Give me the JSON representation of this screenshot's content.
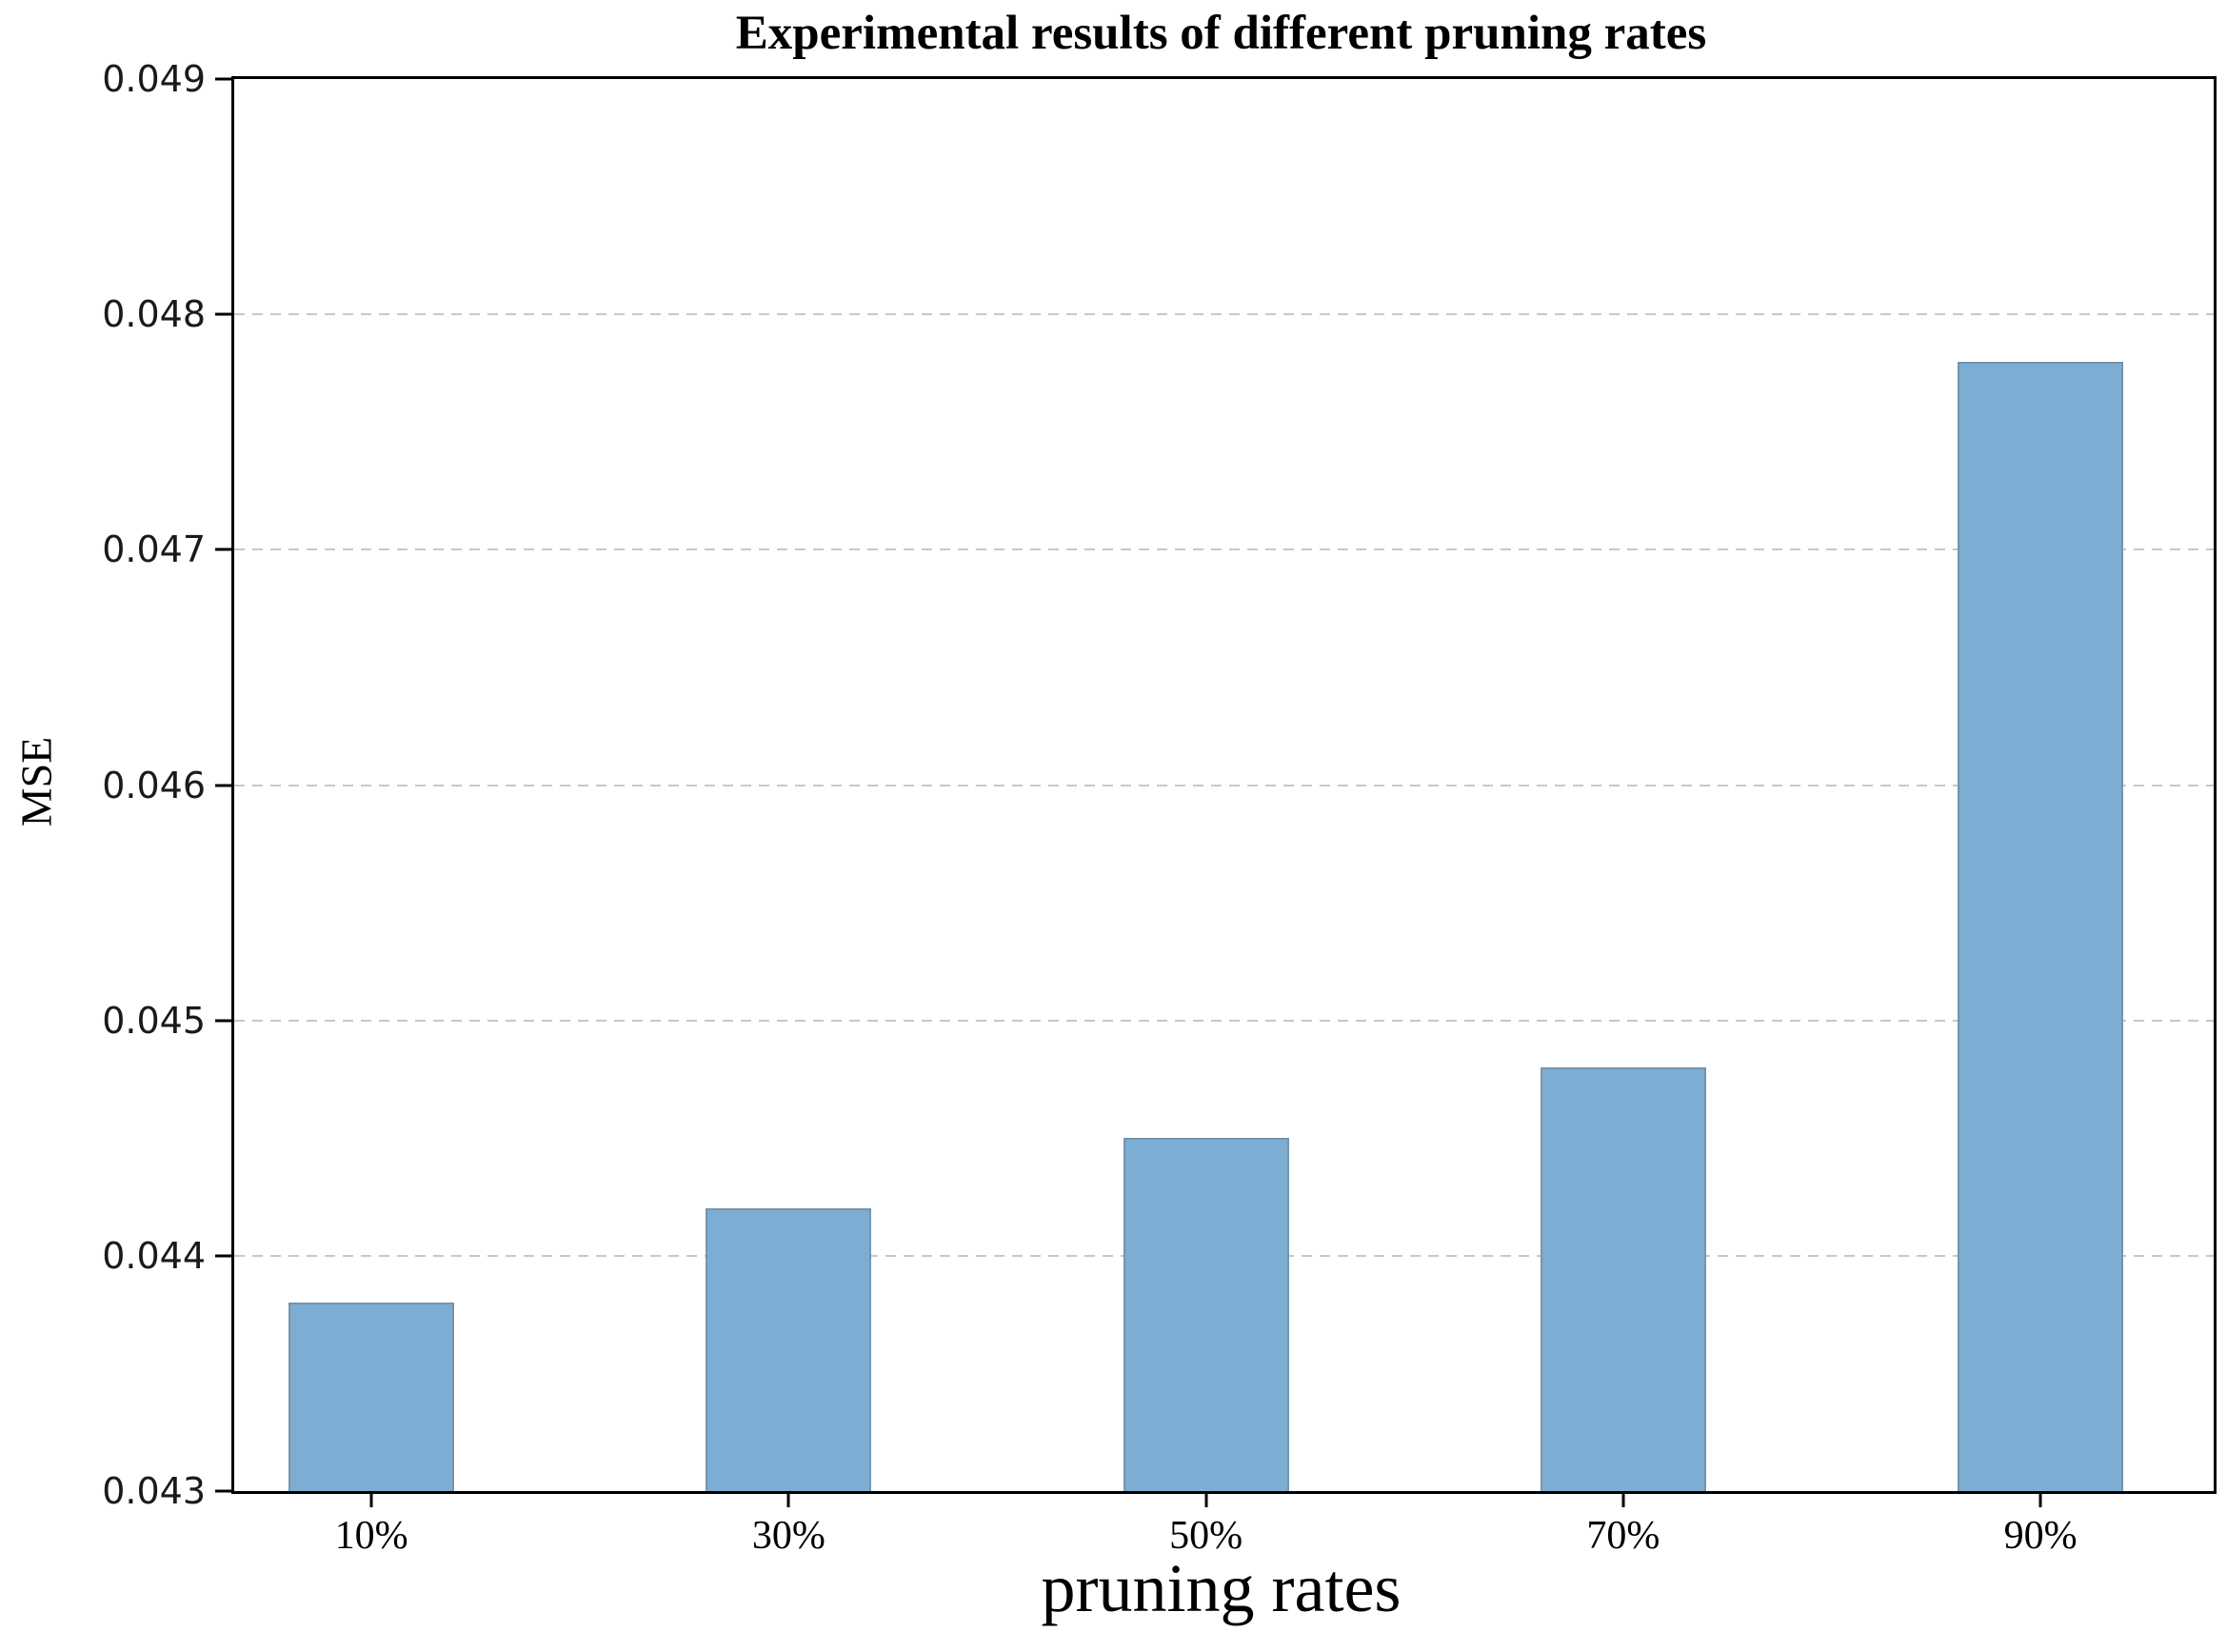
{
  "chart_data": {
    "type": "bar",
    "title": "Experimental results of different pruning rates",
    "xlabel": "pruning rates",
    "ylabel": "MSE",
    "categories": [
      "10%",
      "30%",
      "50%",
      "70%",
      "90%"
    ],
    "values": [
      0.0438,
      0.0442,
      0.0445,
      0.0448,
      0.0478
    ],
    "ylim": [
      0.043,
      0.049
    ],
    "ytick_values": [
      0.043,
      0.044,
      0.045,
      0.046,
      0.047,
      0.048,
      0.049
    ],
    "ytick_labels": [
      "0.043",
      "0.044",
      "0.045",
      "0.046",
      "0.047",
      "0.048",
      "0.049"
    ],
    "gridline_values": [
      0.044,
      0.045,
      0.046,
      0.047,
      0.048
    ],
    "grid_style": "horizontal-dashed",
    "legend_position": "none",
    "bar_color": "#7DADD2",
    "bar_edge_color": "#6C7884",
    "axis_color": "#000000",
    "grid_color": "#C8C8C8"
  }
}
